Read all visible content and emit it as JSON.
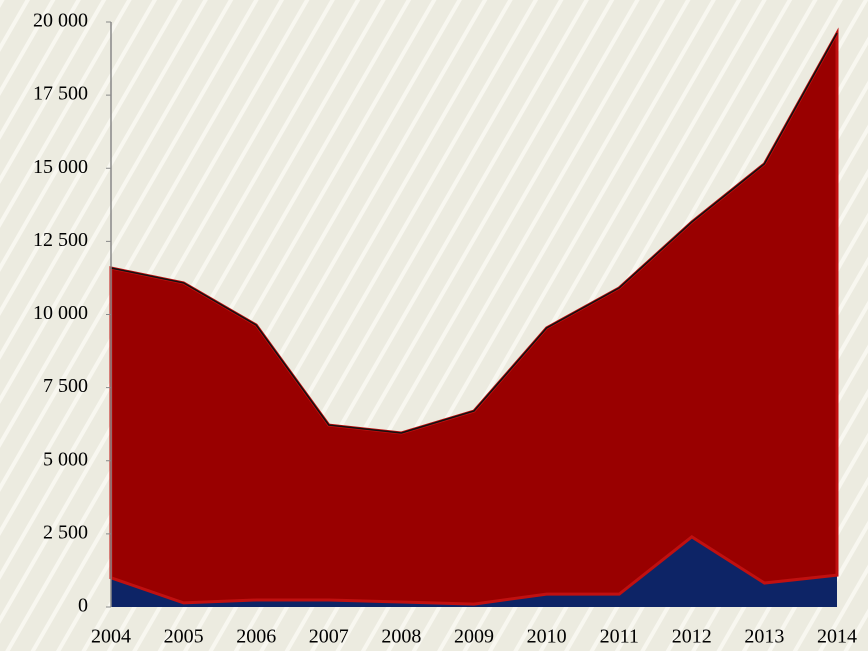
{
  "chart_data": {
    "type": "stacked_area",
    "x": [
      2004,
      2005,
      2006,
      2007,
      2008,
      2009,
      2010,
      2011,
      2012,
      2013,
      2014
    ],
    "xlim": [
      2004,
      2014
    ],
    "series": [
      {
        "color": "#0d2466",
        "values": [
          1000,
          140,
          240,
          240,
          170,
          100,
          440,
          440,
          2400,
          820,
          1090
        ]
      },
      {
        "color": "#990000",
        "values": [
          10590,
          10940,
          9400,
          5980,
          5780,
          6600,
          9100,
          10470,
          10760,
          14330,
          18530
        ]
      }
    ],
    "ylim": [
      0,
      20000
    ],
    "yticks": [
      0,
      {
        "value": 2500,
        "label": "2 500"
      },
      {
        "value": 5000,
        "label": "5 000"
      },
      {
        "value": 7500,
        "label": "7 500"
      },
      {
        "value": 10000,
        "label": "10 000"
      },
      {
        "value": 12500,
        "label": "12 500"
      },
      {
        "value": 15000,
        "label": "15 000"
      },
      {
        "value": 17500,
        "label": "17 500"
      },
      {
        "value": 20000,
        "label": "20 000"
      }
    ],
    "grid": false
  }
}
